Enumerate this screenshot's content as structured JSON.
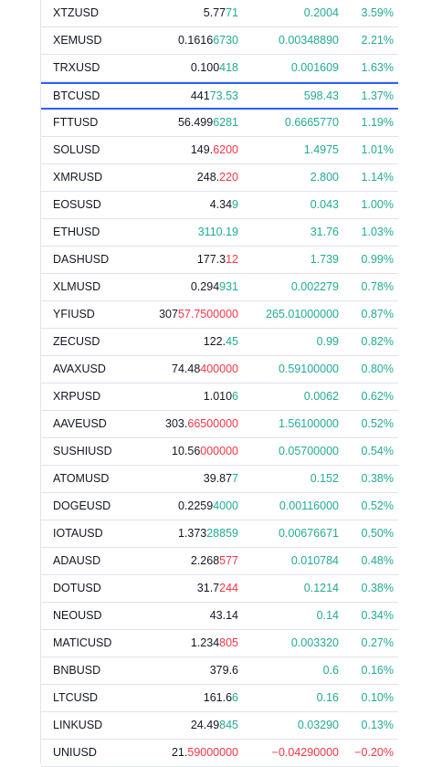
{
  "colors": {
    "up": "#22ab94",
    "down": "#f23645",
    "text": "#131722",
    "highlight": "#2962ff"
  },
  "watchlist": {
    "highlighted_symbol": "BTCUSD",
    "rows": [
      {
        "symbol": "XTZUSD",
        "last_prefix": "5.77",
        "last_suffix": "71",
        "last_dir": "up",
        "change": "0.2004",
        "change_pct": "3.59%",
        "dir": "up"
      },
      {
        "symbol": "XEMUSD",
        "last_prefix": "0.1616",
        "last_suffix": "6730",
        "last_dir": "up",
        "change": "0.00348890",
        "change_pct": "2.21%",
        "dir": "up"
      },
      {
        "symbol": "TRXUSD",
        "last_prefix": "0.100",
        "last_suffix": "418",
        "last_dir": "up",
        "change": "0.001609",
        "change_pct": "1.63%",
        "dir": "up"
      },
      {
        "symbol": "BTCUSD",
        "last_prefix": "441",
        "last_suffix": "73.53",
        "last_dir": "up",
        "change": "598.43",
        "change_pct": "1.37%",
        "dir": "up"
      },
      {
        "symbol": "FTTUSD",
        "last_prefix": "56.499",
        "last_suffix": "6281",
        "last_dir": "up",
        "change": "0.6665770",
        "change_pct": "1.19%",
        "dir": "up"
      },
      {
        "symbol": "SOLUSD",
        "last_prefix": "149.",
        "last_suffix": "6200",
        "last_dir": "down",
        "change": "1.4975",
        "change_pct": "1.01%",
        "dir": "up"
      },
      {
        "symbol": "XMRUSD",
        "last_prefix": "248.",
        "last_suffix": "220",
        "last_dir": "down",
        "change": "2.800",
        "change_pct": "1.14%",
        "dir": "up"
      },
      {
        "symbol": "EOSUSD",
        "last_prefix": "4.34",
        "last_suffix": "9",
        "last_dir": "up",
        "change": "0.043",
        "change_pct": "1.00%",
        "dir": "up"
      },
      {
        "symbol": "ETHUSD",
        "last_prefix": "",
        "last_suffix": "3110.19",
        "last_dir": "up",
        "change": "31.76",
        "change_pct": "1.03%",
        "dir": "up"
      },
      {
        "symbol": "DASHUSD",
        "last_prefix": "177.3",
        "last_suffix": "12",
        "last_dir": "down",
        "change": "1.739",
        "change_pct": "0.99%",
        "dir": "up"
      },
      {
        "symbol": "XLMUSD",
        "last_prefix": "0.294",
        "last_suffix": "931",
        "last_dir": "up",
        "change": "0.002279",
        "change_pct": "0.78%",
        "dir": "up"
      },
      {
        "symbol": "YFIUSD",
        "last_prefix": "307",
        "last_suffix": "57.7500000",
        "last_dir": "down",
        "change": "265.01000000",
        "change_pct": "0.87%",
        "dir": "up"
      },
      {
        "symbol": "ZECUSD",
        "last_prefix": "122.",
        "last_suffix": "45",
        "last_dir": "up",
        "change": "0.99",
        "change_pct": "0.82%",
        "dir": "up"
      },
      {
        "symbol": "AVAXUSD",
        "last_prefix": "74.48",
        "last_suffix": "400000",
        "last_dir": "down",
        "change": "0.59100000",
        "change_pct": "0.80%",
        "dir": "up"
      },
      {
        "symbol": "XRPUSD",
        "last_prefix": "1.010",
        "last_suffix": "6",
        "last_dir": "up",
        "change": "0.0062",
        "change_pct": "0.62%",
        "dir": "up"
      },
      {
        "symbol": "AAVEUSD",
        "last_prefix": "303.",
        "last_suffix": "66500000",
        "last_dir": "down",
        "change": "1.56100000",
        "change_pct": "0.52%",
        "dir": "up"
      },
      {
        "symbol": "SUSHIUSD",
        "last_prefix": "10.56",
        "last_suffix": "000000",
        "last_dir": "down",
        "change": "0.05700000",
        "change_pct": "0.54%",
        "dir": "up"
      },
      {
        "symbol": "ATOMUSD",
        "last_prefix": "39.87",
        "last_suffix": "7",
        "last_dir": "up",
        "change": "0.152",
        "change_pct": "0.38%",
        "dir": "up"
      },
      {
        "symbol": "DOGEUSD",
        "last_prefix": "0.2259",
        "last_suffix": "4000",
        "last_dir": "up",
        "change": "0.00116000",
        "change_pct": "0.52%",
        "dir": "up"
      },
      {
        "symbol": "IOTAUSD",
        "last_prefix": "1.373",
        "last_suffix": "28859",
        "last_dir": "up",
        "change": "0.00676671",
        "change_pct": "0.50%",
        "dir": "up"
      },
      {
        "symbol": "ADAUSD",
        "last_prefix": "2.268",
        "last_suffix": "577",
        "last_dir": "down",
        "change": "0.010784",
        "change_pct": "0.48%",
        "dir": "up"
      },
      {
        "symbol": "DOTUSD",
        "last_prefix": "31.7",
        "last_suffix": "244",
        "last_dir": "down",
        "change": "0.1214",
        "change_pct": "0.38%",
        "dir": "up"
      },
      {
        "symbol": "NEOUSD",
        "last_prefix": "43.14",
        "last_suffix": "",
        "last_dir": "up",
        "change": "0.14",
        "change_pct": "0.34%",
        "dir": "up"
      },
      {
        "symbol": "MATICUSD",
        "last_prefix": "1.234",
        "last_suffix": "805",
        "last_dir": "down",
        "change": "0.003320",
        "change_pct": "0.27%",
        "dir": "up"
      },
      {
        "symbol": "BNBUSD",
        "last_prefix": "379.6",
        "last_suffix": "",
        "last_dir": "up",
        "change": "0.6",
        "change_pct": "0.16%",
        "dir": "up"
      },
      {
        "symbol": "LTCUSD",
        "last_prefix": "161.6",
        "last_suffix": "6",
        "last_dir": "up",
        "change": "0.16",
        "change_pct": "0.10%",
        "dir": "up"
      },
      {
        "symbol": "LINKUSD",
        "last_prefix": "24.49",
        "last_suffix": "845",
        "last_dir": "up",
        "change": "0.03290",
        "change_pct": "0.13%",
        "dir": "up"
      },
      {
        "symbol": "UNIUSD",
        "last_prefix": "21.",
        "last_suffix": "59000000",
        "last_dir": "down",
        "change": "−0.04290000",
        "change_pct": "−0.20%",
        "dir": "down"
      }
    ]
  }
}
